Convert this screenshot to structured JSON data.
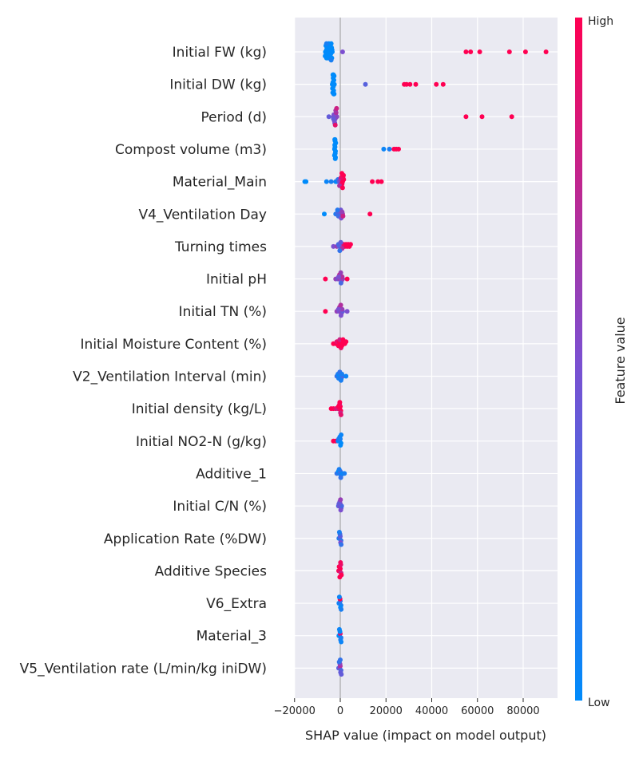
{
  "chart_data": {
    "type": "scatter",
    "subtype": "shap-beeswarm",
    "xlabel": "SHAP value (impact on model output)",
    "xlim": [
      -20000,
      95000
    ],
    "xticks": [
      -20000,
      0,
      20000,
      40000,
      60000,
      80000
    ],
    "xtick_labels": [
      "−20000",
      "0",
      "20000",
      "40000",
      "60000",
      "80000"
    ],
    "grid": true,
    "colorbar": {
      "label": "Feature value",
      "high_label": "High",
      "low_label": "Low",
      "low_color": "#008bfb",
      "mid_color": "#7c4fd0",
      "high_color": "#ff0052"
    },
    "features": [
      {
        "name": "Initial FW (kg)",
        "points": [
          [
            -6500,
            0
          ],
          [
            -6000,
            0
          ],
          [
            -5500,
            0
          ],
          [
            -5000,
            0
          ],
          [
            -4500,
            0
          ],
          [
            -4000,
            0
          ],
          [
            -3500,
            0
          ],
          [
            -6200,
            0
          ],
          [
            -5800,
            0
          ],
          [
            -5200,
            0
          ],
          [
            -4800,
            0
          ],
          [
            -4200,
            0
          ],
          [
            -3800,
            0
          ],
          [
            -6600,
            0
          ],
          [
            -5600,
            0
          ],
          [
            -5000,
            0
          ],
          [
            -4400,
            0
          ],
          [
            -3600,
            0
          ],
          [
            -6300,
            0
          ],
          [
            -5300,
            0
          ],
          [
            -4600,
            0
          ],
          [
            -3700,
            0
          ],
          [
            -6000,
            0
          ],
          [
            -5000,
            0
          ],
          [
            -4000,
            0
          ],
          [
            -6000,
            0.1
          ],
          [
            -4000,
            0.1
          ],
          [
            1000,
            0.5
          ],
          [
            55000,
            1
          ],
          [
            57000,
            1
          ],
          [
            61000,
            1
          ],
          [
            74000,
            1
          ],
          [
            81000,
            1
          ],
          [
            90000,
            1
          ]
        ]
      },
      {
        "name": "Initial DW (kg)",
        "points": [
          [
            -3500,
            0
          ],
          [
            -3200,
            0
          ],
          [
            -3000,
            0
          ],
          [
            -2800,
            0
          ],
          [
            -2600,
            0
          ],
          [
            -3400,
            0
          ],
          [
            -3100,
            0
          ],
          [
            -2900,
            0
          ],
          [
            -2700,
            0
          ],
          [
            -3300,
            0
          ],
          [
            -3000,
            0
          ],
          [
            -2800,
            0
          ],
          [
            -3200,
            0
          ],
          [
            -2900,
            0
          ],
          [
            -3100,
            0
          ],
          [
            -2700,
            0
          ],
          [
            11000,
            0.35
          ],
          [
            28000,
            1
          ],
          [
            29000,
            1
          ],
          [
            30500,
            1
          ],
          [
            33000,
            1
          ],
          [
            42000,
            1
          ],
          [
            45000,
            1
          ]
        ]
      },
      {
        "name": "Period (d)",
        "points": [
          [
            -3000,
            0.45
          ],
          [
            -2500,
            0.5
          ],
          [
            -2000,
            0.6
          ],
          [
            -1500,
            0.55
          ],
          [
            -2800,
            0.5
          ],
          [
            -2200,
            0.55
          ],
          [
            -1800,
            0.7
          ],
          [
            -2600,
            0.45
          ],
          [
            -2000,
            0.65
          ],
          [
            -3000,
            0.4
          ],
          [
            -5000,
            0.4
          ],
          [
            -2400,
            0.5
          ],
          [
            -1600,
            0.8
          ],
          [
            -2200,
            0.9
          ],
          [
            55000,
            1
          ],
          [
            62000,
            1
          ],
          [
            75000,
            1
          ]
        ]
      },
      {
        "name": "Compost volume (m3)",
        "points": [
          [
            -2500,
            0
          ],
          [
            -2300,
            0
          ],
          [
            -2100,
            0
          ],
          [
            -2400,
            0
          ],
          [
            -2200,
            0
          ],
          [
            -2000,
            0
          ],
          [
            -2500,
            0
          ],
          [
            -2300,
            0
          ],
          [
            -2100,
            0
          ],
          [
            -2400,
            0
          ],
          [
            -2200,
            0
          ],
          [
            -2300,
            0
          ],
          [
            19000,
            0.05
          ],
          [
            21500,
            0.1
          ],
          [
            23500,
            1
          ],
          [
            24500,
            1
          ],
          [
            25500,
            1
          ]
        ]
      },
      {
        "name": "Material_Main",
        "points": [
          [
            -15000,
            0
          ],
          [
            -15500,
            0
          ],
          [
            -6000,
            0.05
          ],
          [
            -4000,
            0.1
          ],
          [
            -2000,
            0.1
          ],
          [
            -1500,
            0.0
          ],
          [
            -1000,
            0.2
          ],
          [
            -500,
            0.4
          ],
          [
            0,
            0.6
          ],
          [
            500,
            0.8
          ],
          [
            1000,
            1
          ],
          [
            1500,
            1
          ],
          [
            800,
            1
          ],
          [
            1200,
            1
          ],
          [
            600,
            1
          ],
          [
            400,
            0.9
          ],
          [
            -300,
            0.7
          ],
          [
            1400,
            1
          ],
          [
            1000,
            1
          ],
          [
            700,
            1
          ],
          [
            14000,
            1
          ],
          [
            16500,
            1
          ],
          [
            18000,
            1
          ]
        ]
      },
      {
        "name": "V4_Ventilation Day",
        "points": [
          [
            -7000,
            0
          ],
          [
            -2000,
            0.1
          ],
          [
            -1500,
            0.2
          ],
          [
            -1000,
            0.3
          ],
          [
            -500,
            0.3
          ],
          [
            0,
            0.4
          ],
          [
            500,
            0.5
          ],
          [
            1000,
            0.7
          ],
          [
            -800,
            0.25
          ],
          [
            200,
            0.45
          ],
          [
            800,
            0.6
          ],
          [
            -1200,
            0.15
          ],
          [
            400,
            0.5
          ],
          [
            1200,
            0.8
          ],
          [
            13000,
            1
          ]
        ]
      },
      {
        "name": "Turning times",
        "points": [
          [
            -3000,
            0.5
          ],
          [
            -1500,
            0.6
          ],
          [
            -500,
            0.4
          ],
          [
            0,
            0.3
          ],
          [
            500,
            0.2
          ],
          [
            1000,
            0.5
          ],
          [
            2000,
            1
          ],
          [
            3000,
            1
          ],
          [
            3500,
            1
          ],
          [
            4000,
            1
          ],
          [
            4500,
            1
          ],
          [
            1500,
            0.9
          ],
          [
            -800,
            0.3
          ],
          [
            200,
            0.4
          ],
          [
            2500,
            1
          ],
          [
            800,
            0.7
          ],
          [
            -200,
            0.2
          ]
        ]
      },
      {
        "name": "Initial pH",
        "points": [
          [
            -6500,
            1
          ],
          [
            -2000,
            0.6
          ],
          [
            -1000,
            0.4
          ],
          [
            -500,
            0.6
          ],
          [
            0,
            0.5
          ],
          [
            500,
            0.5
          ],
          [
            1000,
            0.6
          ],
          [
            -300,
            0.8
          ],
          [
            300,
            0.3
          ],
          [
            800,
            0.7
          ],
          [
            -700,
            0.5
          ],
          [
            200,
            0.6
          ],
          [
            3000,
            1
          ]
        ]
      },
      {
        "name": "Initial TN (%)",
        "points": [
          [
            -6500,
            1
          ],
          [
            -1500,
            0.6
          ],
          [
            -500,
            0.5
          ],
          [
            0,
            0.6
          ],
          [
            500,
            0.6
          ],
          [
            1000,
            0.4
          ],
          [
            -300,
            0.7
          ],
          [
            300,
            0.5
          ],
          [
            800,
            0.6
          ],
          [
            -800,
            0.5
          ],
          [
            200,
            0.7
          ],
          [
            3000,
            0.5
          ]
        ]
      },
      {
        "name": "Initial Moisture Content (%)",
        "points": [
          [
            -3000,
            1
          ],
          [
            -2000,
            1
          ],
          [
            -1000,
            1
          ],
          [
            0,
            0.9
          ],
          [
            1000,
            1
          ],
          [
            2000,
            1
          ],
          [
            -1500,
            0.9
          ],
          [
            -500,
            1
          ],
          [
            500,
            1
          ],
          [
            1500,
            1
          ],
          [
            -200,
            0.8
          ],
          [
            300,
            0.9
          ],
          [
            700,
            1
          ],
          [
            -800,
            1
          ],
          [
            1200,
            1
          ],
          [
            2500,
            1
          ]
        ]
      },
      {
        "name": "V2_Ventilation Interval (min)",
        "points": [
          [
            -1500,
            0.2
          ],
          [
            -1000,
            0.1
          ],
          [
            -500,
            0
          ],
          [
            0,
            0.1
          ],
          [
            500,
            0
          ],
          [
            1000,
            0.3
          ],
          [
            -200,
            0.2
          ],
          [
            300,
            0.1
          ],
          [
            -700,
            0.1
          ],
          [
            700,
            0.1
          ],
          [
            2500,
            0.05
          ]
        ]
      },
      {
        "name": "Initial density (kg/L)",
        "points": [
          [
            -4000,
            1
          ],
          [
            -3000,
            1
          ],
          [
            -2000,
            0.9
          ],
          [
            -1000,
            0.8
          ],
          [
            -500,
            0.9
          ],
          [
            0,
            1
          ],
          [
            200,
            1
          ],
          [
            -300,
            0.9
          ],
          [
            100,
            0.8
          ],
          [
            -800,
            1
          ],
          [
            -200,
            1
          ],
          [
            300,
            0.9
          ]
        ]
      },
      {
        "name": "Initial NO2-N (g/kg)",
        "points": [
          [
            -3000,
            1
          ],
          [
            -2000,
            1
          ],
          [
            -1000,
            0.1
          ],
          [
            -500,
            0
          ],
          [
            0,
            0.1
          ],
          [
            300,
            0
          ],
          [
            -200,
            0.05
          ],
          [
            100,
            0
          ],
          [
            -700,
            0.1
          ],
          [
            400,
            0.05
          ]
        ]
      },
      {
        "name": "Additive_1",
        "points": [
          [
            -1500,
            0.2
          ],
          [
            -800,
            0
          ],
          [
            -300,
            0.1
          ],
          [
            0,
            0.3
          ],
          [
            300,
            0.1
          ],
          [
            800,
            0.05
          ],
          [
            -500,
            0.1
          ],
          [
            200,
            0.2
          ],
          [
            1800,
            0.1
          ]
        ]
      },
      {
        "name": "Initial C/N (%)",
        "points": [
          [
            -800,
            0.3
          ],
          [
            -400,
            0.5
          ],
          [
            0,
            0.6
          ],
          [
            400,
            0.4
          ],
          [
            -200,
            0.5
          ],
          [
            200,
            0.5
          ],
          [
            600,
            0.3
          ],
          [
            -600,
            0.4
          ],
          [
            100,
            0.6
          ]
        ]
      },
      {
        "name": "Application Rate (%DW)",
        "points": [
          [
            -600,
            0.1
          ],
          [
            -300,
            0.2
          ],
          [
            0,
            0.4
          ],
          [
            300,
            0.2
          ],
          [
            -150,
            0.3
          ],
          [
            150,
            0.5
          ],
          [
            -400,
            0.1
          ],
          [
            400,
            0.2
          ]
        ]
      },
      {
        "name": "Additive Species",
        "points": [
          [
            -700,
            1
          ],
          [
            -300,
            0.9
          ],
          [
            0,
            1
          ],
          [
            300,
            0.8
          ],
          [
            -500,
            1
          ],
          [
            500,
            1
          ],
          [
            200,
            0.9
          ],
          [
            -200,
            1
          ],
          [
            100,
            0.95
          ]
        ]
      },
      {
        "name": "V6_Extra",
        "points": [
          [
            -600,
            0
          ],
          [
            -300,
            0.1
          ],
          [
            0,
            0.2
          ],
          [
            300,
            0.1
          ],
          [
            -100,
            1
          ],
          [
            100,
            0
          ],
          [
            -400,
            0.05
          ],
          [
            400,
            0.1
          ]
        ]
      },
      {
        "name": "Material_3",
        "points": [
          [
            -600,
            0
          ],
          [
            -300,
            0
          ],
          [
            0,
            0.9
          ],
          [
            300,
            0.1
          ],
          [
            -150,
            0
          ],
          [
            150,
            0.1
          ],
          [
            -400,
            0.05
          ],
          [
            400,
            0.05
          ]
        ]
      },
      {
        "name": "V5_Ventilation rate (L/min/kg iniDW)",
        "points": [
          [
            -700,
            0.3
          ],
          [
            -300,
            0.5
          ],
          [
            0,
            0.7
          ],
          [
            300,
            0.3
          ],
          [
            -150,
            0.6
          ],
          [
            150,
            0.4
          ],
          [
            -450,
            0.2
          ],
          [
            450,
            0.4
          ],
          [
            0,
            0.2
          ]
        ]
      }
    ]
  }
}
